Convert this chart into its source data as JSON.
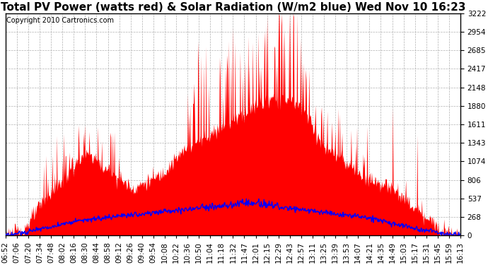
{
  "title": "Total PV Power (watts red) & Solar Radiation (W/m2 blue) Wed Nov 10 16:23",
  "copyright_text": "Copyright 2010 Cartronics.com",
  "y_max": 3222.5,
  "y_min": 0.0,
  "y_ticks": [
    0.0,
    268.5,
    537.1,
    805.6,
    1074.2,
    1342.7,
    1611.3,
    1879.8,
    2148.3,
    2416.9,
    2685.4,
    2954.0,
    3222.5
  ],
  "x_labels": [
    "06:52",
    "07:06",
    "07:20",
    "07:34",
    "07:48",
    "08:02",
    "08:16",
    "08:30",
    "08:44",
    "08:58",
    "09:12",
    "09:26",
    "09:40",
    "09:54",
    "10:08",
    "10:22",
    "10:36",
    "10:50",
    "11:04",
    "11:18",
    "11:32",
    "11:47",
    "12:01",
    "12:15",
    "12:29",
    "12:43",
    "12:57",
    "13:11",
    "13:25",
    "13:39",
    "13:53",
    "14:07",
    "14:21",
    "14:35",
    "14:49",
    "15:03",
    "15:17",
    "15:31",
    "15:45",
    "15:59",
    "16:13"
  ],
  "background_color": "#ffffff",
  "plot_bg_color": "#ffffff",
  "grid_color": "#b0b0b0",
  "fill_color_red": "#ff0000",
  "line_color_blue": "#0000ff",
  "title_fontsize": 11,
  "tick_fontsize": 7.5,
  "copyright_fontsize": 7.0
}
